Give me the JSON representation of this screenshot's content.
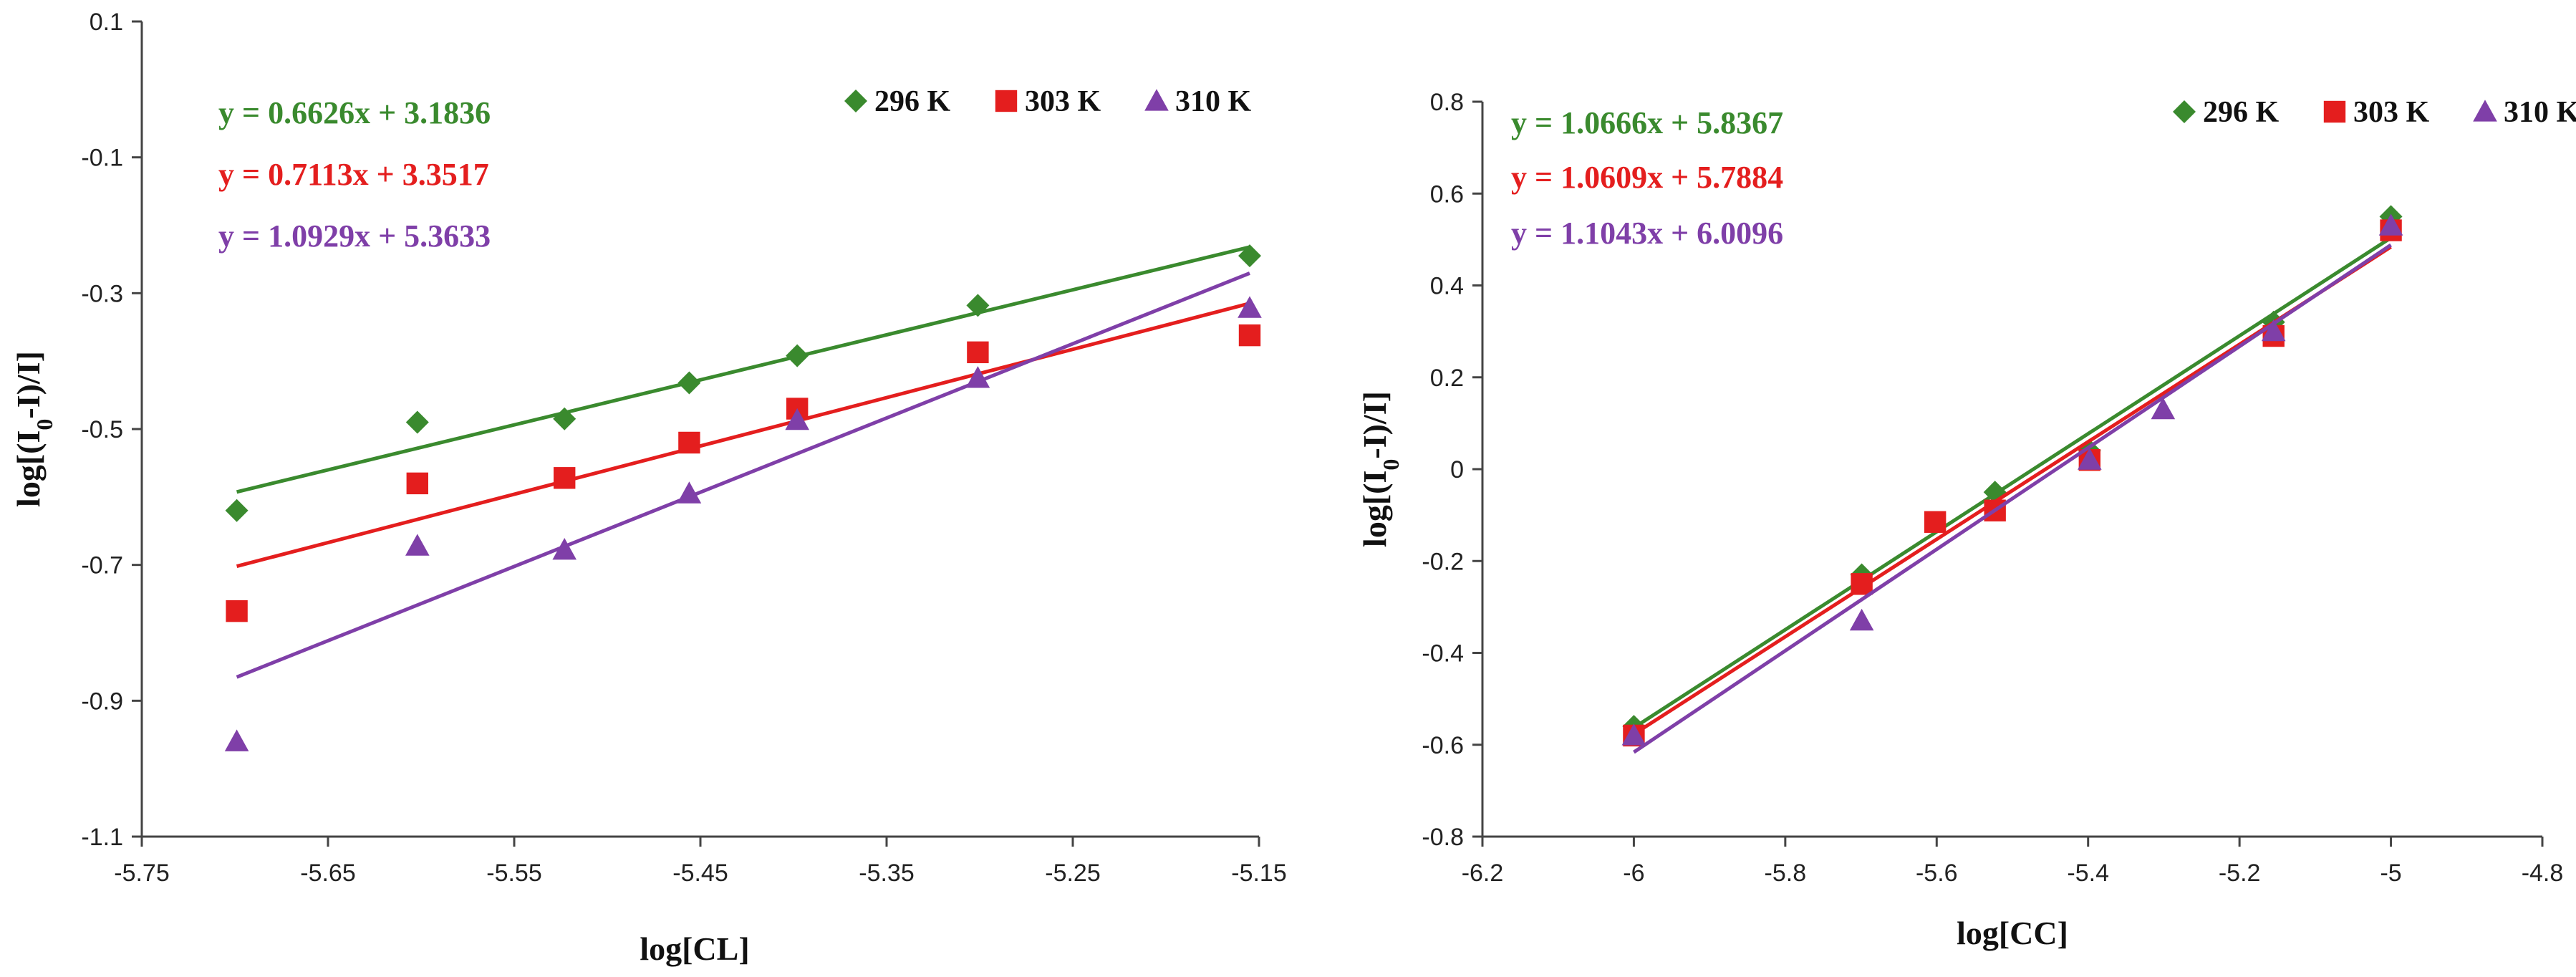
{
  "chart_data": [
    {
      "type": "scatter",
      "xlabel": "log[CL]",
      "ylabel_parts": [
        "log[(I",
        "0",
        "-I)/I]"
      ],
      "xlim": [
        -5.75,
        -5.15
      ],
      "ylim": [
        -1.1,
        0.1
      ],
      "xticks": [
        "-5.75",
        "-5.65",
        "-5.55",
        "-5.45",
        "-5.35",
        "-5.25",
        "-5.15"
      ],
      "yticks": [
        "-1.1",
        "-0.9",
        "-0.7",
        "-0.5",
        "-0.3",
        "-0.1",
        "0.1"
      ],
      "series": [
        {
          "name": "296 K",
          "marker": "diamond",
          "color": "#3a8a2e",
          "x": [
            -5.699,
            -5.602,
            -5.523,
            -5.456,
            -5.398,
            -5.301,
            -5.155
          ],
          "y": [
            -0.62,
            -0.49,
            -0.485,
            -0.432,
            -0.392,
            -0.318,
            -0.245
          ],
          "equation": "y = 0.6626x + 3.1836",
          "slope": 0.6626,
          "intercept": 3.1836
        },
        {
          "name": "303 K",
          "marker": "square",
          "color": "#e41e1e",
          "x": [
            -5.699,
            -5.602,
            -5.523,
            -5.456,
            -5.398,
            -5.301,
            -5.155
          ],
          "y": [
            -0.768,
            -0.58,
            -0.572,
            -0.52,
            -0.47,
            -0.387,
            -0.362
          ],
          "equation": "y = 0.7113x + 3.3517",
          "slope": 0.7113,
          "intercept": 3.3517
        },
        {
          "name": "310 K",
          "marker": "triangle",
          "color": "#7f3fa8",
          "x": [
            -5.699,
            -5.602,
            -5.523,
            -5.456,
            -5.398,
            -5.301,
            -5.155
          ],
          "y": [
            -0.96,
            -0.672,
            -0.678,
            -0.595,
            -0.487,
            -0.425,
            -0.322
          ],
          "equation": "y = 1.0929x + 5.3633",
          "slope": 1.0929,
          "intercept": 5.3633
        }
      ],
      "legend": "top-right"
    },
    {
      "type": "scatter",
      "xlabel": "log[CC]",
      "ylabel_parts": [
        "log[(I",
        "0",
        "-I)/I]"
      ],
      "xlim": [
        -6.2,
        -4.8
      ],
      "ylim": [
        -0.8,
        0.8
      ],
      "xticks": [
        "-6.2",
        "-6",
        "-5.8",
        "-5.6",
        "-5.4",
        "-5.2",
        "-5",
        "-4.8"
      ],
      "yticks": [
        "-0.8",
        "-0.6",
        "-0.4",
        "-0.2",
        "0",
        "0.2",
        "0.4",
        "0.6",
        "0.8"
      ],
      "series": [
        {
          "name": "296 K",
          "marker": "diamond",
          "color": "#3a8a2e",
          "x": [
            -6.0,
            -5.699,
            -5.523,
            -5.398,
            -5.155,
            -5.0
          ],
          "y": [
            -0.56,
            -0.23,
            -0.05,
            0.04,
            0.32,
            0.55
          ],
          "equation": "y = 1.0666x + 5.8367",
          "slope": 1.0666,
          "intercept": 5.8367
        },
        {
          "name": "303 K",
          "marker": "square",
          "color": "#e41e1e",
          "x": [
            -6.0,
            -5.699,
            -5.602,
            -5.523,
            -5.398,
            -5.155,
            -5.0
          ],
          "y": [
            -0.58,
            -0.25,
            -0.115,
            -0.09,
            0.02,
            0.29,
            0.52
          ],
          "equation": "y = 1.0609x + 5.7884",
          "slope": 1.0609,
          "intercept": 5.7884
        },
        {
          "name": "310 K",
          "marker": "triangle",
          "color": "#7f3fa8",
          "x": [
            -6.0,
            -5.699,
            -5.398,
            -5.301,
            -5.155,
            -5.0
          ],
          "y": [
            -0.58,
            -0.33,
            0.02,
            0.13,
            0.3,
            0.53
          ],
          "equation": "y = 1.1043x + 6.0096",
          "slope": 1.1043,
          "intercept": 6.0096
        }
      ],
      "legend": "top-right"
    }
  ]
}
